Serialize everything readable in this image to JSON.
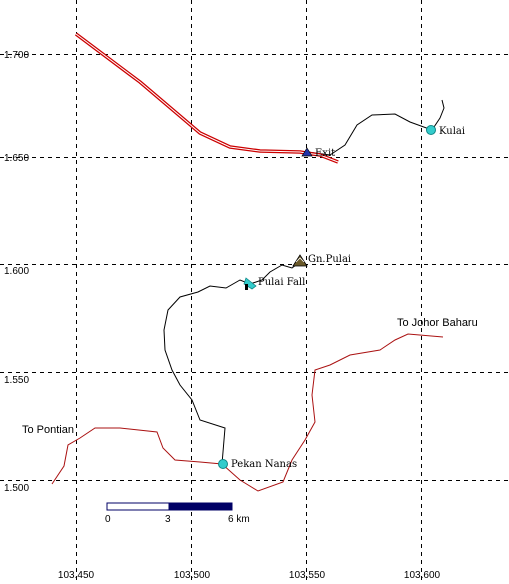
{
  "map": {
    "lat_ticks": [
      "1.700",
      "1.650",
      "1.600",
      "1.550",
      "1.500"
    ],
    "lon_ticks": [
      "103.450",
      "103.500",
      "103.550",
      "103.600"
    ],
    "places": {
      "kulai": "Kulai",
      "exit": "Exit",
      "gn_pulai": "Gn.Pulai",
      "pulai_fall": "Pulai Fall",
      "pekan_nanas": "Pekan Nanas"
    },
    "directions": {
      "johor": "To Johor Baharu",
      "pontian": "To Pontian"
    },
    "scale": {
      "l0": "0",
      "l3": "3",
      "l6": "6 km"
    },
    "colors": {
      "highway": "#cc0000",
      "road": "#000000",
      "town": "#33cccc",
      "waterfall": "#33cccc",
      "exit": "#2233aa",
      "scale_fill": "#000066",
      "grid": "#000000"
    }
  }
}
